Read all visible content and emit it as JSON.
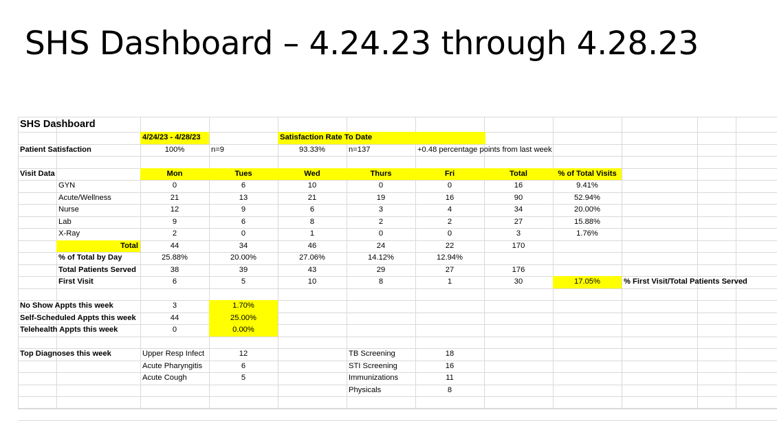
{
  "slide_title": "SHS Dashboard – 4.24.23 through 4.28.23",
  "sheet": {
    "title": "SHS Dashboard",
    "date_range": "4/24/23 - 4/28/23",
    "satisfaction_to_date_label": "Satisfaction Rate To Date",
    "patient_satisfaction": {
      "label": "Patient Satisfaction",
      "week_rate": "100%",
      "week_n": "n=9",
      "to_date_rate": "93.33%",
      "to_date_n": "n=137",
      "change_note": "+0.48 percentage points from last week"
    },
    "visit_data": {
      "label": "Visit Data",
      "headers": [
        "Mon",
        "Tues",
        "Wed",
        "Thurs",
        "Fri",
        "Total",
        "% of Total Visits"
      ],
      "rows": [
        {
          "label": "GYN",
          "values": [
            "0",
            "6",
            "10",
            "0",
            "0",
            "16",
            "9.41%"
          ]
        },
        {
          "label": "Acute/Wellness",
          "values": [
            "21",
            "13",
            "21",
            "19",
            "16",
            "90",
            "52.94%"
          ]
        },
        {
          "label": "Nurse",
          "values": [
            "12",
            "9",
            "6",
            "3",
            "4",
            "34",
            "20.00%"
          ]
        },
        {
          "label": "Lab",
          "values": [
            "9",
            "6",
            "8",
            "2",
            "2",
            "27",
            "15.88%"
          ]
        },
        {
          "label": "X-Ray",
          "values": [
            "2",
            "0",
            "1",
            "0",
            "0",
            "3",
            "1.76%"
          ]
        }
      ],
      "total": {
        "label": "Total",
        "values": [
          "44",
          "34",
          "46",
          "24",
          "22",
          "170"
        ]
      },
      "pct_by_day": {
        "label": "% of Total by Day",
        "values": [
          "25.88%",
          "20.00%",
          "27.06%",
          "14.12%",
          "12.94%"
        ]
      },
      "patients_served": {
        "label": "Total Patients Served",
        "values": [
          "38",
          "39",
          "43",
          "29",
          "27",
          "176"
        ]
      },
      "first_visit": {
        "label": "First Visit",
        "values": [
          "6",
          "5",
          "10",
          "8",
          "1",
          "30"
        ],
        "pct": "17.05%",
        "pct_label": "% First Visit/Total Patients Served"
      }
    },
    "appointments": [
      {
        "label": "No Show Appts this week",
        "count": "3",
        "pct": "1.70%"
      },
      {
        "label": "Self-Scheduled Appts this week",
        "count": "44",
        "pct": "25.00%"
      },
      {
        "label": "Telehealth Appts this week",
        "count": "0",
        "pct": "0.00%"
      }
    ],
    "diagnoses": {
      "label": "Top Diagnoses this week",
      "left": [
        {
          "name": "Upper Resp Infect",
          "count": "12"
        },
        {
          "name": "Acute Pharyngitis",
          "count": "6"
        },
        {
          "name": "Acute Cough",
          "count": "5"
        }
      ],
      "right": [
        {
          "name": "TB Screening",
          "count": "18"
        },
        {
          "name": "STI Screening",
          "count": "16"
        },
        {
          "name": "Immunizations",
          "count": "11"
        },
        {
          "name": "Physicals",
          "count": "8"
        }
      ]
    }
  }
}
